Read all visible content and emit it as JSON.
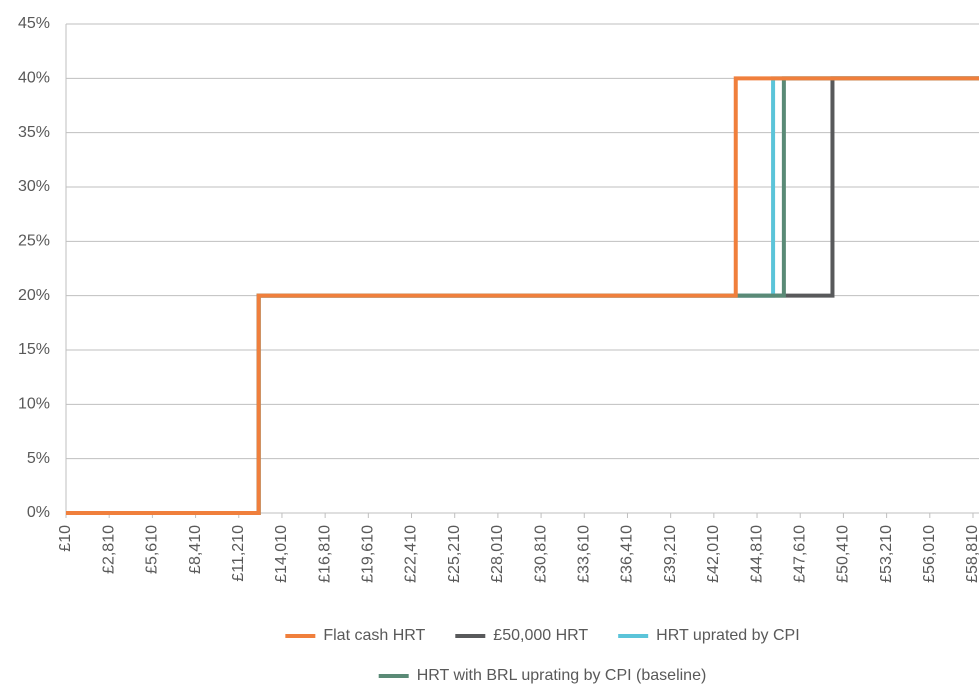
{
  "chart_data": {
    "type": "line",
    "step": true,
    "xlim": [
      10,
      59200
    ],
    "ylim": [
      0,
      45
    ],
    "xticks": [
      {
        "value": 10,
        "label": "£10"
      },
      {
        "value": 2810,
        "label": "£2,810"
      },
      {
        "value": 5610,
        "label": "£5,610"
      },
      {
        "value": 8410,
        "label": "£8,410"
      },
      {
        "value": 11210,
        "label": "£11,210"
      },
      {
        "value": 14010,
        "label": "£14,010"
      },
      {
        "value": 16810,
        "label": "£16,810"
      },
      {
        "value": 19610,
        "label": "£19,610"
      },
      {
        "value": 22410,
        "label": "£22,410"
      },
      {
        "value": 25210,
        "label": "£25,210"
      },
      {
        "value": 28010,
        "label": "£28,010"
      },
      {
        "value": 30810,
        "label": "£30,810"
      },
      {
        "value": 33610,
        "label": "£33,610"
      },
      {
        "value": 36410,
        "label": "£36,410"
      },
      {
        "value": 39210,
        "label": "£39,210"
      },
      {
        "value": 42010,
        "label": "£42,010"
      },
      {
        "value": 44810,
        "label": "£44,810"
      },
      {
        "value": 47610,
        "label": "£47,610"
      },
      {
        "value": 50410,
        "label": "£50,410"
      },
      {
        "value": 53210,
        "label": "£53,210"
      },
      {
        "value": 56010,
        "label": "£56,010"
      },
      {
        "value": 58810,
        "label": "£58,810"
      }
    ],
    "yticks": [
      {
        "value": 0,
        "label": "0%"
      },
      {
        "value": 5,
        "label": "5%"
      },
      {
        "value": 10,
        "label": "10%"
      },
      {
        "value": 15,
        "label": "15%"
      },
      {
        "value": 20,
        "label": "20%"
      },
      {
        "value": 25,
        "label": "25%"
      },
      {
        "value": 30,
        "label": "30%"
      },
      {
        "value": 35,
        "label": "35%"
      },
      {
        "value": 40,
        "label": "40%"
      },
      {
        "value": 45,
        "label": "45%"
      }
    ],
    "grid": true,
    "legend": "bottom",
    "series": [
      {
        "name": "Flat cash HRT",
        "color": "#f07f3c",
        "x": [
          10,
          12500,
          43430,
          59200
        ],
        "values": [
          0,
          20,
          40,
          40
        ]
      },
      {
        "name": "£50,000 HRT",
        "color": "#58595b",
        "x": [
          10,
          12500,
          49700,
          59200
        ],
        "values": [
          0,
          20,
          40,
          40
        ]
      },
      {
        "name": "HRT uprated by CPI",
        "color": "#5bc4d9",
        "x": [
          10,
          12500,
          45850,
          59200
        ],
        "values": [
          0,
          20,
          40,
          40
        ]
      },
      {
        "name": "HRT with BRL uprating by CPI (baseline)",
        "color": "#5a8a76",
        "x": [
          10,
          12500,
          46550,
          59200
        ],
        "values": [
          0,
          20,
          40,
          40
        ]
      }
    ]
  }
}
